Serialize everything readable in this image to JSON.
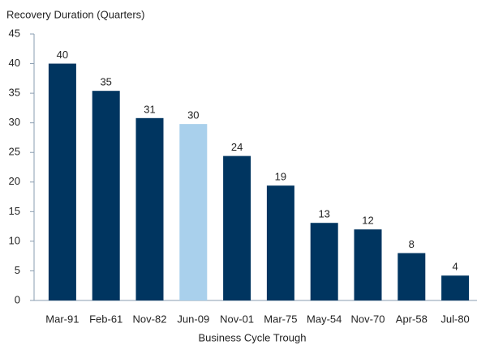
{
  "chart_data": {
    "type": "bar",
    "y_axis_label": "Recovery Duration (Quarters)",
    "x_axis_label": "Business Cycle Trough",
    "categories": [
      "Mar-91",
      "Feb-61",
      "Nov-82",
      "Jun-09",
      "Nov-01",
      "Mar-75",
      "May-54",
      "Nov-70",
      "Apr-58",
      "Jul-80"
    ],
    "values": [
      40,
      35.4,
      30.8,
      29.8,
      24.4,
      19.4,
      13.1,
      12,
      8,
      4.2
    ],
    "value_labels": [
      "40",
      "35",
      "31",
      "30",
      "24",
      "19",
      "13",
      "12",
      "8",
      "4"
    ],
    "colors": [
      "#003560",
      "#003560",
      "#003560",
      "#a9d0ec",
      "#003560",
      "#003560",
      "#003560",
      "#003560",
      "#003560",
      "#003560"
    ],
    "ylim": [
      0,
      45
    ],
    "yticks": [
      0,
      5,
      10,
      15,
      20,
      25,
      30,
      35,
      40,
      45
    ]
  }
}
